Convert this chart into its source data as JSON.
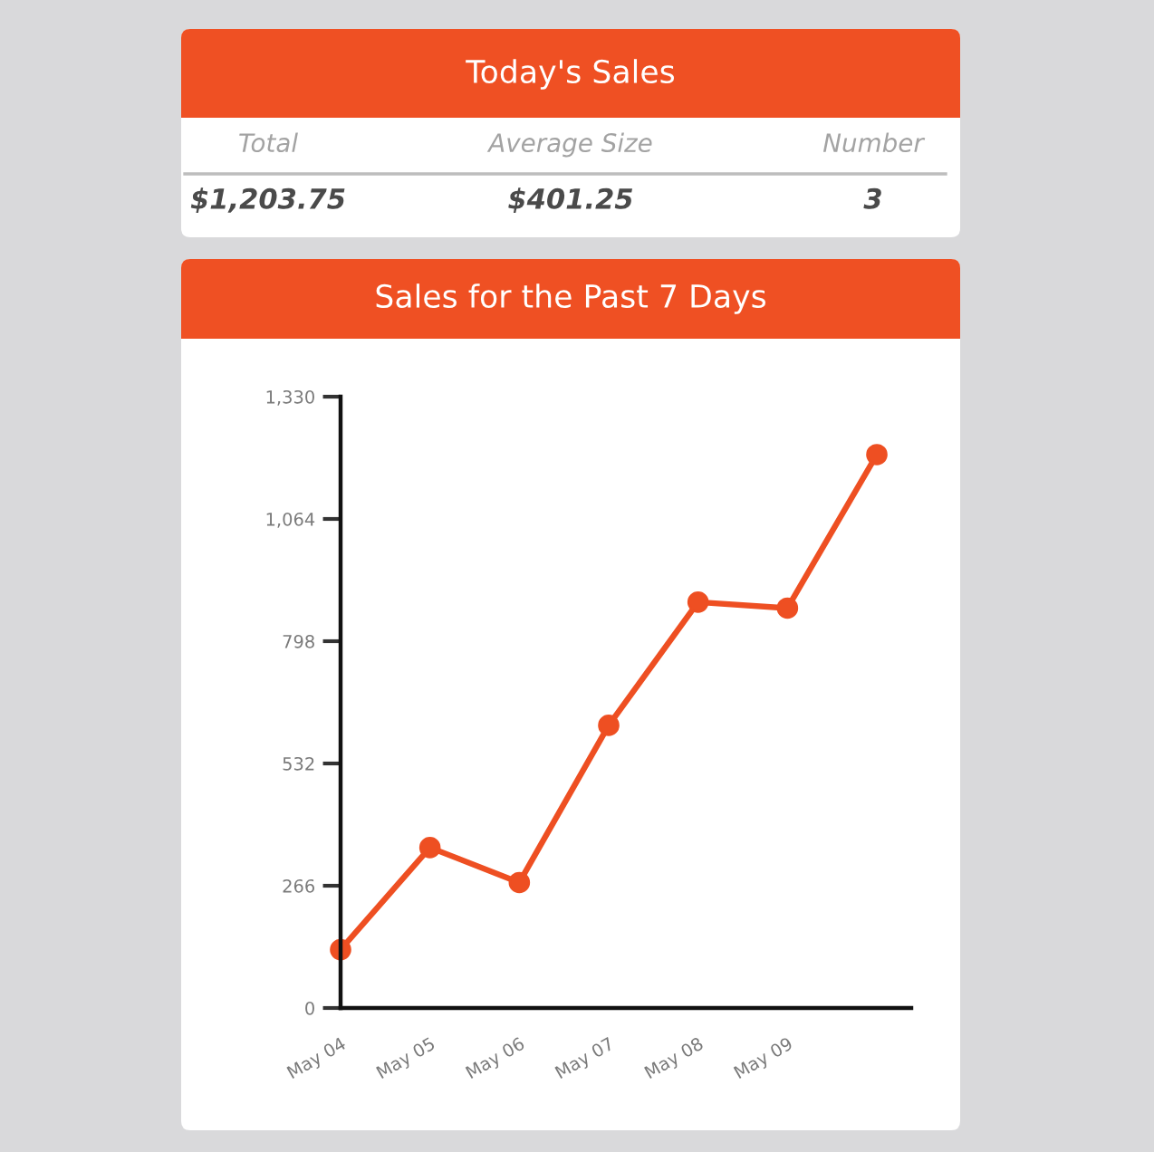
{
  "chart_data": [
    {
      "type": "other",
      "title": "Today's Sales",
      "categories": [
        "Total",
        "Average Size",
        "Number"
      ],
      "annotations": [
        "$1,203.75",
        "$401.25",
        "3"
      ]
    },
    {
      "type": "line",
      "title": "Sales for the Past 7 Days",
      "categories": [
        "May 04",
        "May 05",
        "May 06",
        "May 07",
        "May 08",
        "May 09",
        null
      ],
      "values": [
        127,
        349,
        273,
        615,
        883,
        870,
        1204
      ],
      "color": "#ee4f22",
      "marker": "circle",
      "ylim": [
        0,
        1330
      ],
      "yticks": [
        0,
        266,
        532,
        798,
        {
          "value": 1064,
          "label": "1,064"
        },
        {
          "value": 1330,
          "label": "1,330"
        }
      ]
    }
  ]
}
